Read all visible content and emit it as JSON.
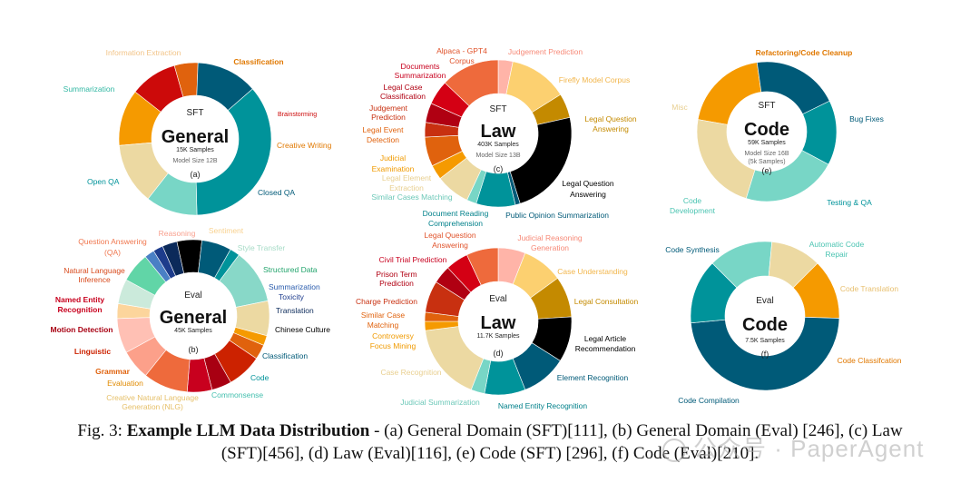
{
  "caption": {
    "prefix": "Fig. 3:",
    "title": "Example LLM Data Distribution",
    "line1": " - (a) General Domain (SFT)[111], (b) General Domain (Eval) [246], (c) Law",
    "line2": "(SFT)[456], (d) Law (Eval)[116], (e) Code (SFT) [296], (f) Code (Eval)[210]."
  },
  "watermark": {
    "text": "公众号 · PaperAgent",
    "icon": "wechat-icon"
  },
  "chart_data": [
    {
      "type": "pie",
      "id": "a",
      "center": {
        "top": "SFT",
        "main": "General",
        "samples": "15K Samples",
        "model": "Model Size 12B",
        "tag": "(a)"
      },
      "slices": [
        {
          "label": "Classification",
          "value": 12,
          "color": "#f59a00"
        },
        {
          "label": "Brainstorming",
          "value": 10,
          "color": "#cc0a0a"
        },
        {
          "label": "Creative Writing",
          "value": 5,
          "color": "#e0620d"
        },
        {
          "label": "Closed QA",
          "value": 13,
          "color": "#005a78"
        },
        {
          "label": "Open QA",
          "value": 36,
          "color": "#00939a"
        },
        {
          "label": "Summarization",
          "value": 11,
          "color": "#78d6c6"
        },
        {
          "label": "Information Extraction",
          "value": 13,
          "color": "#ecd9a2"
        }
      ]
    },
    {
      "type": "pie",
      "id": "b",
      "center": {
        "top": "Eval",
        "main": "General",
        "samples": "45K Samples",
        "tag": "(b)"
      },
      "slices": [
        {
          "label": "Sentiment",
          "value": 3,
          "color": "#fcd59c"
        },
        {
          "label": "Style Transfer",
          "value": 5,
          "color": "#cbeadb"
        },
        {
          "label": "Structured Data",
          "value": 6,
          "color": "#61d5a7"
        },
        {
          "label": "Summarization",
          "value": 2,
          "color": "#4a80c5"
        },
        {
          "label": "Toxicity",
          "value": 2,
          "color": "#1d3c8c"
        },
        {
          "label": "Translation",
          "value": 3,
          "color": "#0b2a5a"
        },
        {
          "label": "Chinese Culture",
          "value": 5,
          "color": "#000000"
        },
        {
          "label": "Classification",
          "value": 6,
          "color": "#005a78"
        },
        {
          "label": "Code",
          "value": 2,
          "color": "#00939a"
        },
        {
          "label": "Commonsense",
          "value": 11,
          "color": "#88d8c8"
        },
        {
          "label": "Creative Natural Language Generation (NLG)",
          "value": 7,
          "color": "#ecd9a2"
        },
        {
          "label": "Evaluation",
          "value": 2,
          "color": "#f59a00"
        },
        {
          "label": "Grammar",
          "value": 3,
          "color": "#e0620d"
        },
        {
          "label": "Linguistic",
          "value": 7,
          "color": "#cc2200"
        },
        {
          "label": "Motion Detection",
          "value": 4,
          "color": "#a80012"
        },
        {
          "label": "Named Entity Recognition",
          "value": 5,
          "color": "#c8001e"
        },
        {
          "label": "Natural Language Inference",
          "value": 9,
          "color": "#ee6a3c"
        },
        {
          "label": "Question Answering (QA)",
          "value": 6,
          "color": "#fca08a"
        },
        {
          "label": "Reasoning",
          "value": 7,
          "color": "#ffc0b4"
        }
      ]
    },
    {
      "type": "pie",
      "id": "c",
      "center": {
        "top": "SFT",
        "main": "Law",
        "samples": "403K Samples",
        "model": "Model Size 13B",
        "tag": "(c)"
      },
      "slices": [
        {
          "label": "Judgement Prediction",
          "value": 3,
          "color": "#ffb4a8"
        },
        {
          "label": "Firefly Model Corpus",
          "value": 12,
          "color": "#fcd070"
        },
        {
          "label": "Legal Question Answering",
          "value": 5,
          "color": "#c48a00"
        },
        {
          "label": "Legal Question Answering",
          "value": 22,
          "color": "#000000"
        },
        {
          "label": "Public Opinion Summarization",
          "value": 1,
          "color": "#005a78"
        },
        {
          "label": "Document Reading Comprehension",
          "value": 8,
          "color": "#00939a"
        },
        {
          "label": "Similar Cases Matching",
          "value": 2,
          "color": "#78d6c6"
        },
        {
          "label": "Legal Element Extraction",
          "value": 7,
          "color": "#ecd9a2"
        },
        {
          "label": "Judicial Examination",
          "value": 3,
          "color": "#f59a00"
        },
        {
          "label": "Legal Event Detection",
          "value": 6,
          "color": "#e0620d"
        },
        {
          "label": "Judgement Prediction",
          "value": 3,
          "color": "#c83010"
        },
        {
          "label": "Legal Case Classification",
          "value": 4,
          "color": "#b00012"
        },
        {
          "label": "Documents Summarization",
          "value": 5,
          "color": "#d40014"
        },
        {
          "label": "Alpaca - GPT4 Corpus",
          "value": 12,
          "color": "#ee6a3c"
        }
      ]
    },
    {
      "type": "pie",
      "id": "d",
      "center": {
        "top": "Eval",
        "main": "Law",
        "samples": "11.7K Samples",
        "tag": "(d)"
      },
      "slices": [
        {
          "label": "Judicial Reasoning Generation",
          "value": 6,
          "color": "#ffb4a8"
        },
        {
          "label": "Case Understanding",
          "value": 9,
          "color": "#fcd070"
        },
        {
          "label": "Legal Consultation",
          "value": 9,
          "color": "#c48a00"
        },
        {
          "label": "Legal Article Recommendation",
          "value": 10,
          "color": "#000000"
        },
        {
          "label": "Element Recognition",
          "value": 10,
          "color": "#005a78"
        },
        {
          "label": "Named Entity Recognition",
          "value": 9,
          "color": "#00939a"
        },
        {
          "label": "Judicial Summarization",
          "value": 3,
          "color": "#78d6c6"
        },
        {
          "label": "Case Recognition",
          "value": 17,
          "color": "#ecd9a2"
        },
        {
          "label": "Controversy Focus Mining",
          "value": 2,
          "color": "#f59a00"
        },
        {
          "label": "Similar Case Matching",
          "value": 2,
          "color": "#e0620d"
        },
        {
          "label": "Charge Prediction",
          "value": 7,
          "color": "#c83010"
        },
        {
          "label": "Prison Term Prediction",
          "value": 4,
          "color": "#b00012"
        },
        {
          "label": "Civil Trial Prediction",
          "value": 5,
          "color": "#d40014"
        },
        {
          "label": "Legal Question Answering",
          "value": 7,
          "color": "#ee6a3c"
        }
      ]
    },
    {
      "type": "pie",
      "id": "e",
      "center": {
        "top": "SFT",
        "main": "Code",
        "samples": "59K Samples",
        "model": "Model Size 16B",
        "model2": "(5k Samples)",
        "tag": "(e)"
      },
      "slices": [
        {
          "label": "Refactoring/Code Cleanup",
          "value": 20,
          "color": "#f59a00"
        },
        {
          "label": "Bug Fixes",
          "value": 20,
          "color": "#005a78"
        },
        {
          "label": "Testing & QA",
          "value": 15,
          "color": "#00939a"
        },
        {
          "label": "Code Development",
          "value": 22,
          "color": "#78d6c6"
        },
        {
          "label": "Misc",
          "value": 23,
          "color": "#ecd9a2"
        }
      ]
    },
    {
      "type": "pie",
      "id": "f",
      "center": {
        "top": "Eval",
        "main": "Code",
        "samples": "7.5K Samples",
        "tag": "(f)"
      },
      "slices": [
        {
          "label": "Automatic Code Repair",
          "value": 14,
          "color": "#78d6c6"
        },
        {
          "label": "Code Translation",
          "value": 11,
          "color": "#ecd9a2"
        },
        {
          "label": "Code Classifcation",
          "value": 13,
          "color": "#f59a00"
        },
        {
          "label": "Code Compilation",
          "value": 48,
          "color": "#005a78"
        },
        {
          "label": "Code Synthesis",
          "value": 14,
          "color": "#00939a"
        }
      ]
    }
  ],
  "labels": {
    "a": [
      {
        "text": "Information Extraction",
        "color": "#f2c488"
      },
      {
        "text": "Classification",
        "color": "#e07800",
        "bold": true
      },
      {
        "text": "Summarization",
        "color": "#33b8a4"
      },
      {
        "text": "Brainstorming",
        "color": "#cc0a0a"
      },
      {
        "text": "Creative Writing",
        "color": "#e07800"
      },
      {
        "text": "Open QA",
        "color": "#00939a"
      },
      {
        "text": "Closed QA",
        "color": "#005a78"
      }
    ],
    "b": [
      {
        "text": "Reasoning",
        "color": "#f8a08e"
      },
      {
        "text": "Sentiment",
        "color": "#f8d290"
      },
      {
        "text": "Question Answering",
        "color": "#f07850"
      },
      {
        "text": "(QA)",
        "color": "#f07850"
      },
      {
        "text": "Style Transfer",
        "color": "#a8dcc8"
      },
      {
        "text": "Natural Language",
        "color": "#d84a1c"
      },
      {
        "text": "Inference",
        "color": "#d84a1c"
      },
      {
        "text": "Structured Data",
        "color": "#22a46c"
      },
      {
        "text": "Summarization",
        "color": "#2a5cad"
      },
      {
        "text": "Toxicity",
        "color": "#1d3c8c"
      },
      {
        "text": "Named Entity",
        "color": "#c8001e",
        "bold": true
      },
      {
        "text": "Recognition",
        "color": "#c8001e",
        "bold": true
      },
      {
        "text": "Translation",
        "color": "#0b2a5a"
      },
      {
        "text": "Motion Detection",
        "color": "#a80012",
        "bold": true
      },
      {
        "text": "Chinese Culture",
        "color": "#000000"
      },
      {
        "text": "Linguistic",
        "color": "#cc2200",
        "bold": true
      },
      {
        "text": "Classification",
        "color": "#005a78"
      },
      {
        "text": "Grammar",
        "color": "#e0620d",
        "bold": true
      },
      {
        "text": "Code",
        "color": "#00939a"
      },
      {
        "text": "Evaluation",
        "color": "#e08a00"
      },
      {
        "text": "Commonsense",
        "color": "#44bfae"
      },
      {
        "text": "Creative Natural Language",
        "color": "#e6c06a"
      },
      {
        "text": "Generation (NLG)",
        "color": "#e6c06a"
      }
    ],
    "c": [
      {
        "text": "Alpaca - GPT4",
        "color": "#e0522a"
      },
      {
        "text": "Corpus",
        "color": "#e0522a"
      },
      {
        "text": "Judgement Prediction",
        "color": "#f78a78"
      },
      {
        "text": "Documents",
        "color": "#c8001e"
      },
      {
        "text": "Summarization",
        "color": "#c8001e"
      },
      {
        "text": "Firefly Model Corpus",
        "color": "#f2b64c"
      },
      {
        "text": "Legal Case",
        "color": "#b00012"
      },
      {
        "text": "Classification",
        "color": "#b00012"
      },
      {
        "text": "Judgement",
        "color": "#c83010"
      },
      {
        "text": "Prediction",
        "color": "#c83010"
      },
      {
        "text": "Legal Question",
        "color": "#c48a00"
      },
      {
        "text": "Answering",
        "color": "#c48a00"
      },
      {
        "text": "Legal Event",
        "color": "#e0620d"
      },
      {
        "text": "Detection",
        "color": "#e0620d"
      },
      {
        "text": "Judicial",
        "color": "#f09a00"
      },
      {
        "text": "Examination",
        "color": "#f09a00"
      },
      {
        "text": "Legal Element",
        "color": "#e8cf90"
      },
      {
        "text": "Extraction",
        "color": "#e8cf90"
      },
      {
        "text": "Legal Question",
        "color": "#000000"
      },
      {
        "text": "Answering",
        "color": "#000000"
      },
      {
        "text": "Similar Cases Matching",
        "color": "#6cc8b8"
      },
      {
        "text": "Document Reading",
        "color": "#00808a"
      },
      {
        "text": "Comprehension",
        "color": "#00808a"
      },
      {
        "text": "Public Opinion Summarization",
        "color": "#005a78"
      }
    ],
    "d": [
      {
        "text": "Legal Question",
        "color": "#e0522a"
      },
      {
        "text": "Answering",
        "color": "#e0522a"
      },
      {
        "text": "Judicial Reasoning",
        "color": "#f78a78"
      },
      {
        "text": "Generation",
        "color": "#f78a78"
      },
      {
        "text": "Civil Trial Prediction",
        "color": "#c8001e"
      },
      {
        "text": "Case Understanding",
        "color": "#f2b64c"
      },
      {
        "text": "Prison Term",
        "color": "#b00012"
      },
      {
        "text": "Prediction",
        "color": "#b00012"
      },
      {
        "text": "Legal Consultation",
        "color": "#c48a00"
      },
      {
        "text": "Charge Prediction",
        "color": "#c83010"
      },
      {
        "text": "Similar Case",
        "color": "#e0620d"
      },
      {
        "text": "Matching",
        "color": "#e0620d"
      },
      {
        "text": "Controversy",
        "color": "#f09a00"
      },
      {
        "text": "Focus Mining",
        "color": "#f09a00"
      },
      {
        "text": "Legal Article",
        "color": "#000000"
      },
      {
        "text": "Recommendation",
        "color": "#000000"
      },
      {
        "text": "Case Recognition",
        "color": "#e8cf90"
      },
      {
        "text": "Element Recognition",
        "color": "#005a78"
      },
      {
        "text": "Judicial Summarization",
        "color": "#6cc8b8"
      },
      {
        "text": "Named Entity Recognition",
        "color": "#00808a"
      }
    ],
    "e": [
      {
        "text": "Refactoring/Code Cleanup",
        "color": "#e07800",
        "bold": true
      },
      {
        "text": "Bug Fixes",
        "color": "#005a78"
      },
      {
        "text": "Misc",
        "color": "#e8cf90"
      },
      {
        "text": "Code",
        "color": "#4cc4b2"
      },
      {
        "text": "Development",
        "color": "#4cc4b2"
      },
      {
        "text": "Testing & QA",
        "color": "#00939a"
      }
    ],
    "f": [
      {
        "text": "Code Synthesis",
        "color": "#005a78"
      },
      {
        "text": "Automatic Code",
        "color": "#4cc4b2"
      },
      {
        "text": "Repair",
        "color": "#4cc4b2"
      },
      {
        "text": "Code Translation",
        "color": "#e8c070"
      },
      {
        "text": "Code Classifcation",
        "color": "#e07800"
      },
      {
        "text": "Code Compilation",
        "color": "#005a78"
      }
    ]
  }
}
